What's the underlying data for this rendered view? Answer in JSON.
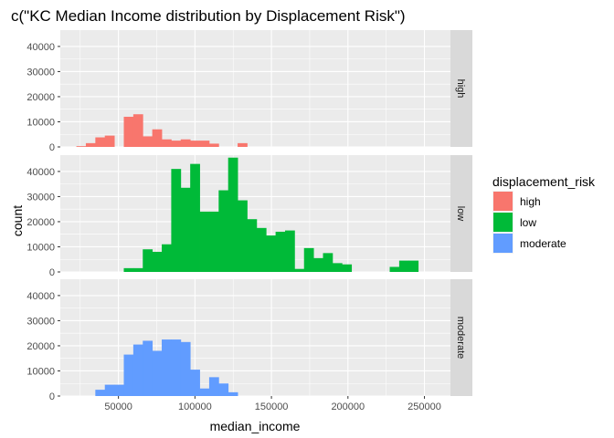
{
  "chart_data": {
    "type": "bar",
    "title": "c(\"KC Median Income distribution by Displacement Risk\")",
    "xlabel": "median_income",
    "ylabel": "count",
    "xlim": [
      12000,
      267000
    ],
    "ylim": [
      0,
      46500
    ],
    "x_ticks": [
      50000,
      100000,
      150000,
      200000,
      250000
    ],
    "x_tick_labels": [
      "50000",
      "100000",
      "150000",
      "200000",
      "250000"
    ],
    "y_ticks": [
      0,
      10000,
      20000,
      30000,
      40000
    ],
    "y_tick_labels": [
      "0",
      "10000",
      "20000",
      "30000",
      "40000"
    ],
    "bin_width": 6200,
    "grid": true,
    "legend_title": "displacement_risk",
    "legend_position": "right",
    "series": [
      {
        "name": "high",
        "strip": "high",
        "color": "#F8766D",
        "bins": [
          {
            "x0": 22500,
            "x1": 28700,
            "y": 300
          },
          {
            "x0": 28700,
            "x1": 34900,
            "y": 1500
          },
          {
            "x0": 34900,
            "x1": 41100,
            "y": 3800
          },
          {
            "x0": 41100,
            "x1": 47300,
            "y": 4500
          },
          {
            "x0": 53500,
            "x1": 59700,
            "y": 12000
          },
          {
            "x0": 59700,
            "x1": 65900,
            "y": 13000
          },
          {
            "x0": 65900,
            "x1": 72100,
            "y": 4200
          },
          {
            "x0": 72100,
            "x1": 78300,
            "y": 7000
          },
          {
            "x0": 78300,
            "x1": 84500,
            "y": 3000
          },
          {
            "x0": 84500,
            "x1": 90700,
            "y": 2500
          },
          {
            "x0": 90700,
            "x1": 96900,
            "y": 3000
          },
          {
            "x0": 96900,
            "x1": 103100,
            "y": 2500
          },
          {
            "x0": 103100,
            "x1": 109300,
            "y": 2500
          },
          {
            "x0": 109300,
            "x1": 115500,
            "y": 1300
          },
          {
            "x0": 127900,
            "x1": 134100,
            "y": 1500
          }
        ]
      },
      {
        "name": "low",
        "strip": "low",
        "color": "#00BA38",
        "bins": [
          {
            "x0": 53500,
            "x1": 59700,
            "y": 1500
          },
          {
            "x0": 59700,
            "x1": 65900,
            "y": 1500
          },
          {
            "x0": 65900,
            "x1": 72100,
            "y": 9000
          },
          {
            "x0": 72100,
            "x1": 78300,
            "y": 8000
          },
          {
            "x0": 78300,
            "x1": 84500,
            "y": 11000
          },
          {
            "x0": 84500,
            "x1": 90700,
            "y": 41000
          },
          {
            "x0": 90700,
            "x1": 96900,
            "y": 33500
          },
          {
            "x0": 96900,
            "x1": 103100,
            "y": 43000
          },
          {
            "x0": 103100,
            "x1": 109300,
            "y": 24000
          },
          {
            "x0": 109300,
            "x1": 115500,
            "y": 24000
          },
          {
            "x0": 115500,
            "x1": 121700,
            "y": 32500
          },
          {
            "x0": 121700,
            "x1": 127900,
            "y": 45500
          },
          {
            "x0": 127900,
            "x1": 134100,
            "y": 28500
          },
          {
            "x0": 134100,
            "x1": 140300,
            "y": 21000
          },
          {
            "x0": 140300,
            "x1": 146500,
            "y": 17500
          },
          {
            "x0": 146500,
            "x1": 152700,
            "y": 14500
          },
          {
            "x0": 152700,
            "x1": 158900,
            "y": 16000
          },
          {
            "x0": 158900,
            "x1": 165100,
            "y": 16500
          },
          {
            "x0": 165100,
            "x1": 171300,
            "y": 1200
          },
          {
            "x0": 171300,
            "x1": 177500,
            "y": 9500
          },
          {
            "x0": 177500,
            "x1": 183700,
            "y": 5500
          },
          {
            "x0": 183700,
            "x1": 189900,
            "y": 7500
          },
          {
            "x0": 189900,
            "x1": 196100,
            "y": 3500
          },
          {
            "x0": 196100,
            "x1": 202300,
            "y": 3000
          },
          {
            "x0": 227300,
            "x1": 233500,
            "y": 2000
          },
          {
            "x0": 233500,
            "x1": 239700,
            "y": 4500
          },
          {
            "x0": 239700,
            "x1": 245900,
            "y": 4500
          }
        ]
      },
      {
        "name": "moderate",
        "strip": "moderate",
        "color": "#619CFF",
        "bins": [
          {
            "x0": 34900,
            "x1": 41100,
            "y": 2500
          },
          {
            "x0": 41100,
            "x1": 47300,
            "y": 4500
          },
          {
            "x0": 47300,
            "x1": 53500,
            "y": 4500
          },
          {
            "x0": 53500,
            "x1": 59700,
            "y": 16500
          },
          {
            "x0": 59700,
            "x1": 65900,
            "y": 20500
          },
          {
            "x0": 65900,
            "x1": 72100,
            "y": 22000
          },
          {
            "x0": 72100,
            "x1": 78300,
            "y": 18000
          },
          {
            "x0": 78300,
            "x1": 84500,
            "y": 22500
          },
          {
            "x0": 84500,
            "x1": 90700,
            "y": 22500
          },
          {
            "x0": 90700,
            "x1": 96900,
            "y": 21500
          },
          {
            "x0": 96900,
            "x1": 103100,
            "y": 10500
          },
          {
            "x0": 103100,
            "x1": 109300,
            "y": 3000
          },
          {
            "x0": 109300,
            "x1": 115500,
            "y": 7500
          },
          {
            "x0": 115500,
            "x1": 121700,
            "y": 5000
          },
          {
            "x0": 121700,
            "x1": 127900,
            "y": 1500
          }
        ]
      }
    ]
  }
}
